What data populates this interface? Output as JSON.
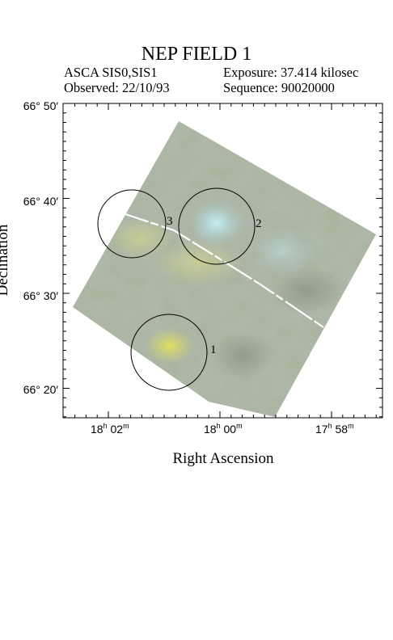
{
  "figure": {
    "title": "NEP FIELD 1",
    "instrument": "ASCA SIS0,SIS1",
    "exposure": "Exposure: 37.414 kilosec",
    "observed": "Observed: 22/10/93",
    "sequence": "Sequence: 90020000"
  },
  "axes": {
    "xlabel": "Right Ascension",
    "ylabel": "Declination",
    "x_ticks": [
      {
        "h": "18",
        "m": "02"
      },
      {
        "h": "18",
        "m": "00"
      },
      {
        "h": "17",
        "m": "58"
      }
    ],
    "y_ticks": [
      "66° 50′",
      "66° 40′",
      "66° 30′",
      "66° 20′"
    ]
  },
  "regions": [
    {
      "label": "1"
    },
    {
      "label": "2"
    },
    {
      "label": "3"
    }
  ],
  "colors": {
    "image_base": "#a9b49e",
    "bright_yellow": "#d6d86a",
    "bright_blue": "#a8d8e8",
    "frame": "#000000"
  }
}
